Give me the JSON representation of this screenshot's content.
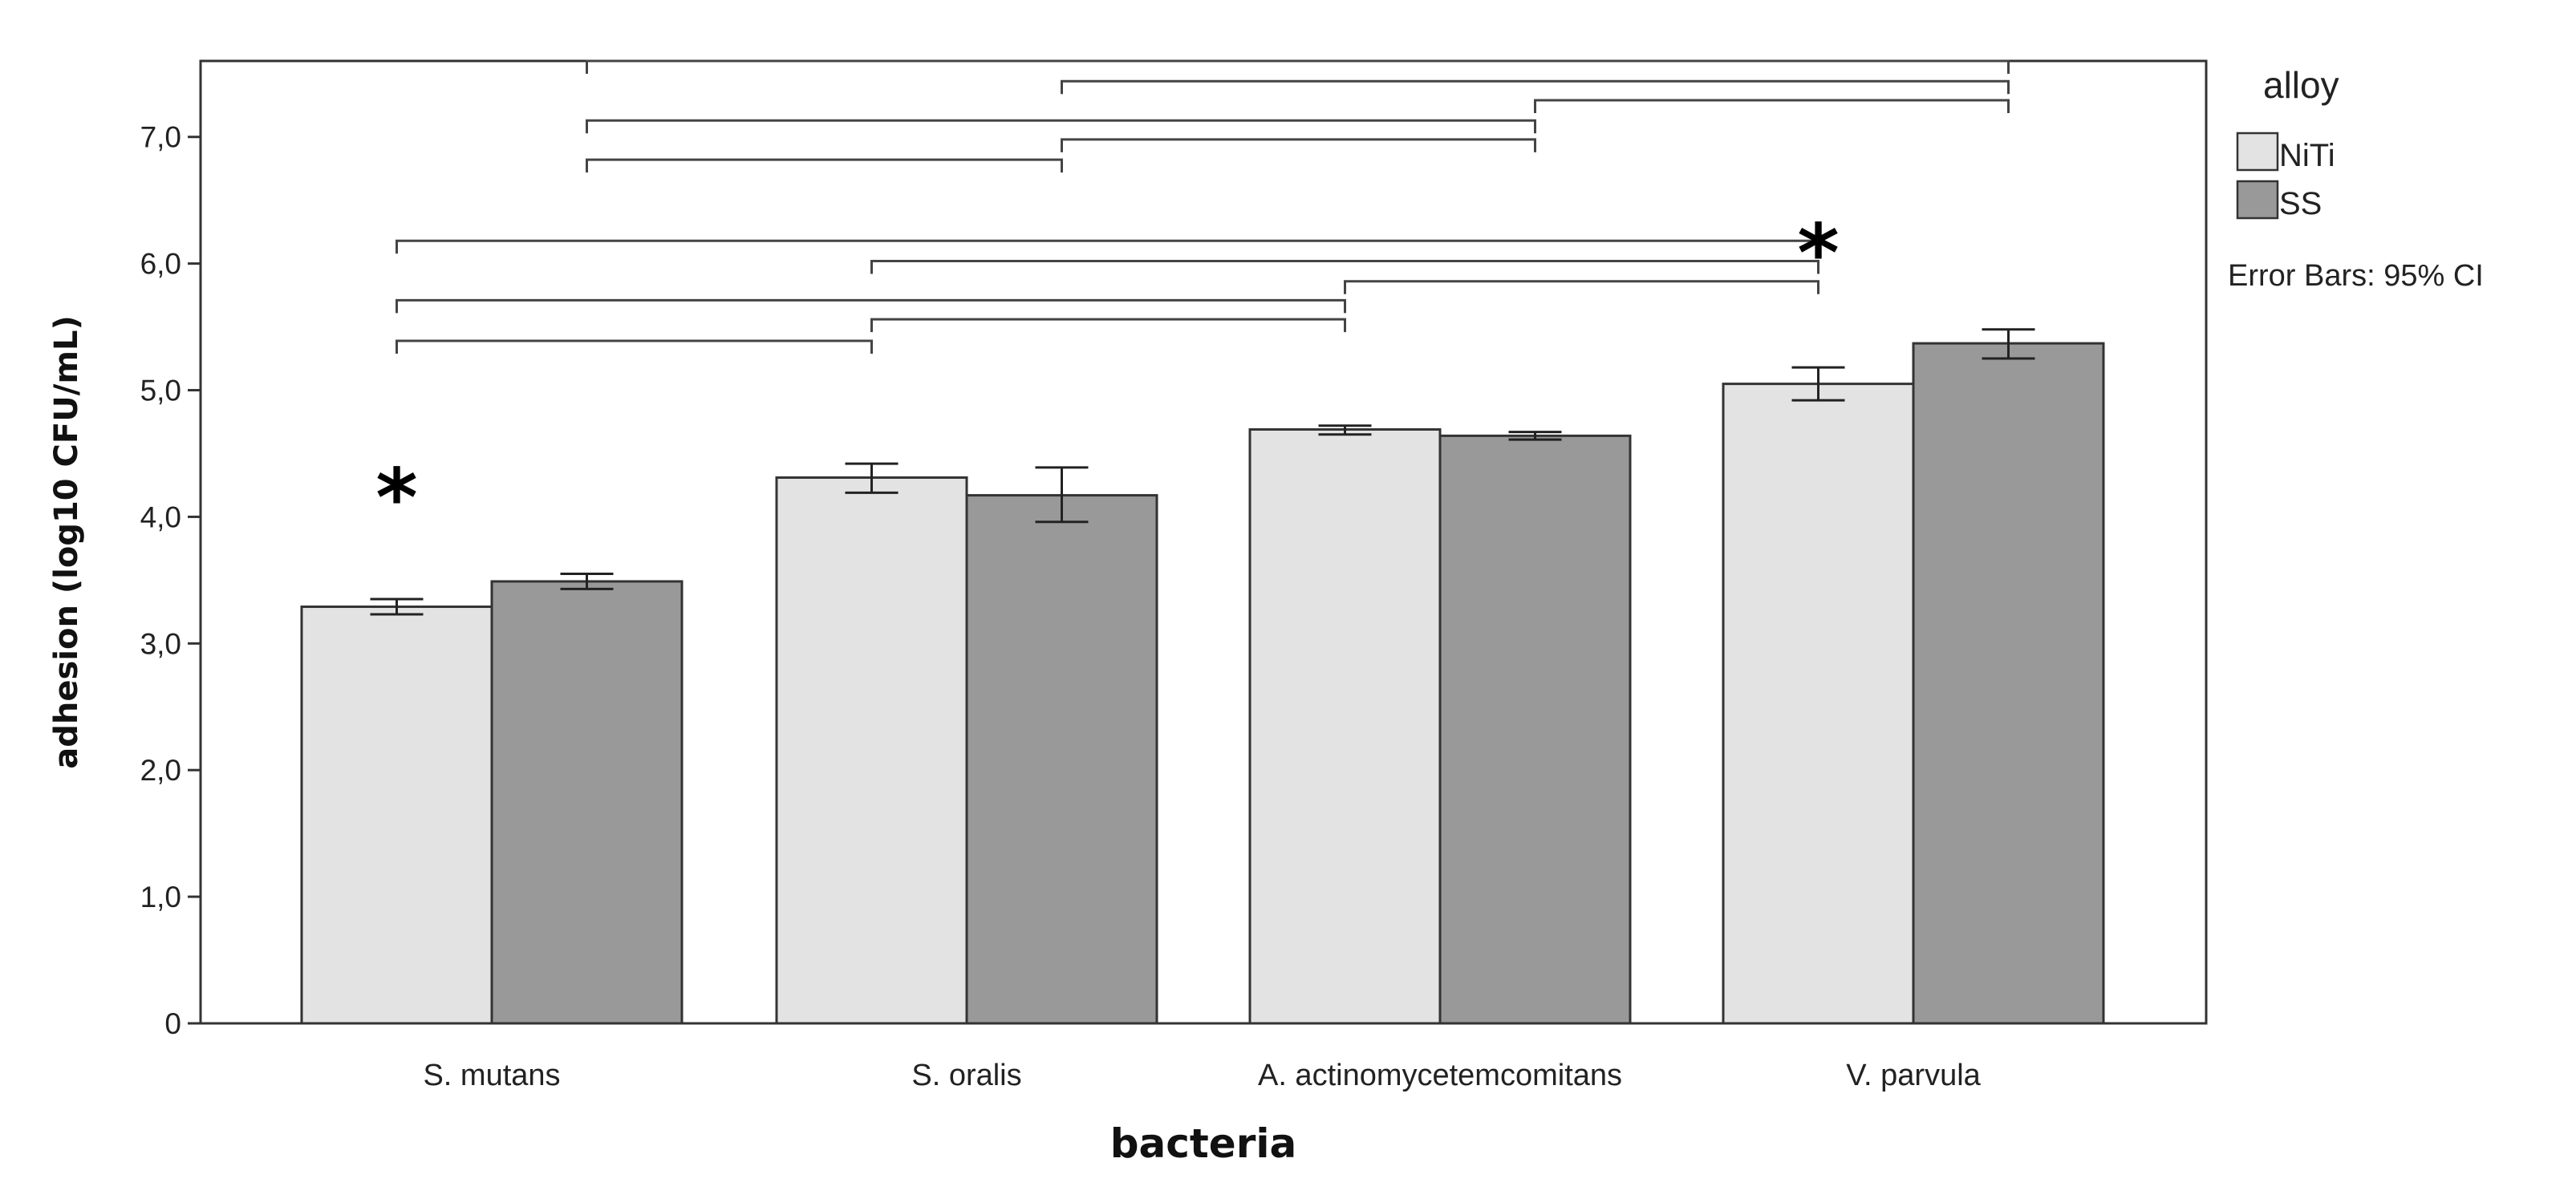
{
  "chart_data": {
    "type": "bar",
    "xlabel": "bacteria",
    "ylabel": "adhesion (log10 CFU/mL)",
    "categories": [
      "S. mutans",
      "S. oralis",
      "A. actinomycetemcomitans",
      "V. parvula"
    ],
    "series": [
      {
        "name": "NiTi",
        "color": "#e3e3e3",
        "values": [
          3.29,
          4.31,
          4.69,
          5.05
        ],
        "ci_low": [
          3.23,
          4.19,
          4.65,
          4.92
        ],
        "ci_high": [
          3.35,
          4.42,
          4.72,
          5.18
        ]
      },
      {
        "name": "SS",
        "color": "#999999",
        "values": [
          3.49,
          4.17,
          4.64,
          5.37
        ],
        "ci_low": [
          3.43,
          3.96,
          4.61,
          5.25
        ],
        "ci_high": [
          3.55,
          4.39,
          4.67,
          5.48
        ]
      }
    ],
    "ylim": [
      0,
      7.6
    ],
    "yticks": [
      0,
      1,
      2,
      3,
      4,
      5,
      6,
      7
    ],
    "ytick_labels": [
      "0",
      "1,0",
      "2,0",
      "3,0",
      "4,0",
      "5,0",
      "6,0",
      "7,0"
    ],
    "grid": false,
    "legend": {
      "title": "alloy",
      "position": "right"
    },
    "note": "Error Bars: 95% CI",
    "significance_marker": "*",
    "significance_categories": [
      0,
      3
    ],
    "niti_comparisons": [
      {
        "from": 0,
        "to": 1,
        "level": 5.39
      },
      {
        "from": 0,
        "to": 2,
        "level": 5.71
      },
      {
        "from": 1,
        "to": 2,
        "level": 5.56
      },
      {
        "from": 0,
        "to": 3,
        "level": 6.18
      },
      {
        "from": 1,
        "to": 3,
        "level": 6.02
      },
      {
        "from": 2,
        "to": 3,
        "level": 5.86
      }
    ],
    "ss_comparisons": [
      {
        "from": 0,
        "to": 1,
        "level": 6.82
      },
      {
        "from": 0,
        "to": 2,
        "level": 7.13
      },
      {
        "from": 1,
        "to": 2,
        "level": 6.98
      },
      {
        "from": 0,
        "to": 3,
        "level": 7.6
      },
      {
        "from": 1,
        "to": 3,
        "level": 7.44
      },
      {
        "from": 2,
        "to": 3,
        "level": 7.29
      }
    ]
  }
}
